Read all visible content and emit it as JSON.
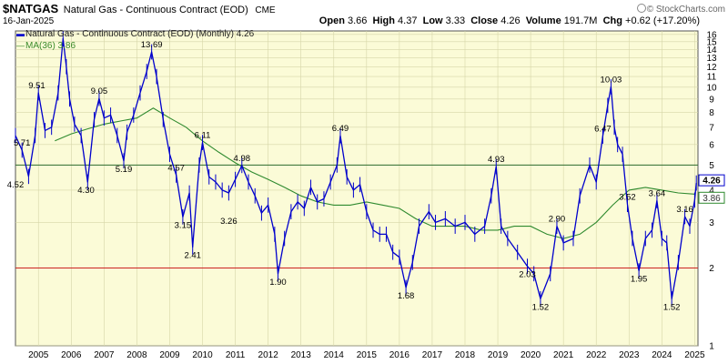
{
  "header": {
    "symbol": "$NATGAS",
    "name": "Natural Gas - Continuous Contract (EOD)",
    "exchange": "CME",
    "date": "16-Jan-2025",
    "open_label": "Open",
    "open": "3.66",
    "high_label": "High",
    "high": "4.37",
    "low_label": "Low",
    "low": "3.33",
    "close_label": "Close",
    "close": "4.26",
    "volume_label": "Volume",
    "volume": "191.7M",
    "chg_label": "Chg",
    "chg": "+0.62 (+17.20%)",
    "copyright": "© StockCharts.com"
  },
  "legend": {
    "price": "Natural Gas - Continuous Contract (EOD) (Monthly) 4.26",
    "ma": "MA(36) 3.86"
  },
  "colors": {
    "plot_bg": "#fbfbd7",
    "price": "#0000cc",
    "ma": "#2f8a2f",
    "upper_line": "#2e6b2e",
    "lower_line": "#cc2222",
    "grid": "#d6d6a8"
  },
  "chart_data": {
    "type": "line",
    "title": "$NATGAS Natural Gas - Continuous Contract (EOD)",
    "interval": "Monthly",
    "xlabel": "",
    "ylabel": "",
    "x_ticks": [
      "2005",
      "2006",
      "2007",
      "2008",
      "2009",
      "2010",
      "2011",
      "2012",
      "2013",
      "2014",
      "2015",
      "2016",
      "2017",
      "2018",
      "2019",
      "2020",
      "2021",
      "2022",
      "2023",
      "2024",
      "2025"
    ],
    "xlim": [
      2004.3,
      2025.1
    ],
    "ylim": [
      1,
      16.5
    ],
    "y_scale": "log",
    "y_ticks": [
      1,
      2,
      3,
      4,
      5,
      6,
      7,
      8,
      9,
      10,
      11,
      12,
      13,
      14,
      15,
      16
    ],
    "grid": true,
    "legend_position": "top-left",
    "horizontal_lines": [
      {
        "value": 5.0,
        "color": "#2e6b2e"
      },
      {
        "value": 2.0,
        "color": "#cc2222"
      }
    ],
    "series": [
      {
        "name": "Natural Gas - Continuous Contract (EOD) (Monthly)",
        "x": [
          2004.3,
          2004.5,
          2004.7,
          2004.9,
          2005.0,
          2005.2,
          2005.4,
          2005.6,
          2005.75,
          2005.85,
          2005.95,
          2006.1,
          2006.3,
          2006.5,
          2006.7,
          2006.85,
          2007.0,
          2007.2,
          2007.4,
          2007.6,
          2007.7,
          2007.9,
          2008.1,
          2008.3,
          2008.45,
          2008.6,
          2008.8,
          2009.0,
          2009.2,
          2009.4,
          2009.6,
          2009.7,
          2009.9,
          2010.0,
          2010.2,
          2010.4,
          2010.6,
          2010.8,
          2011.0,
          2011.2,
          2011.4,
          2011.6,
          2011.8,
          2012.0,
          2012.2,
          2012.3,
          2012.5,
          2012.7,
          2012.9,
          2013.1,
          2013.3,
          2013.5,
          2013.7,
          2013.9,
          2014.1,
          2014.2,
          2014.4,
          2014.6,
          2014.8,
          2015.0,
          2015.2,
          2015.4,
          2015.6,
          2015.8,
          2016.0,
          2016.2,
          2016.4,
          2016.6,
          2016.9,
          2017.1,
          2017.4,
          2017.7,
          2018.0,
          2018.3,
          2018.6,
          2018.8,
          2018.95,
          2019.1,
          2019.3,
          2019.6,
          2019.9,
          2020.1,
          2020.3,
          2020.6,
          2020.8,
          2021.0,
          2021.3,
          2021.5,
          2021.8,
          2022.0,
          2022.2,
          2022.35,
          2022.45,
          2022.55,
          2022.65,
          2022.8,
          2022.95,
          2023.1,
          2023.3,
          2023.5,
          2023.7,
          2023.85,
          2024.0,
          2024.15,
          2024.3,
          2024.5,
          2024.7,
          2024.85,
          2025.0,
          2025.05
        ],
        "values": [
          6.5,
          5.71,
          4.52,
          6.5,
          9.51,
          6.8,
          7.0,
          9.5,
          15.4,
          12.0,
          9.0,
          7.2,
          6.5,
          4.3,
          7.5,
          9.05,
          7.6,
          7.8,
          6.5,
          5.19,
          6.7,
          7.8,
          9.5,
          11.5,
          13.69,
          11.0,
          7.5,
          5.5,
          4.57,
          3.15,
          3.9,
          2.41,
          5.0,
          6.11,
          4.5,
          4.3,
          4.0,
          3.9,
          4.4,
          4.98,
          4.3,
          3.8,
          3.26,
          3.5,
          2.7,
          1.9,
          2.6,
          3.3,
          3.6,
          3.4,
          4.1,
          3.6,
          3.7,
          4.3,
          5.0,
          6.49,
          4.5,
          4.0,
          4.2,
          3.3,
          2.8,
          2.7,
          2.7,
          2.3,
          2.2,
          1.68,
          2.1,
          2.9,
          3.3,
          3.0,
          3.1,
          2.9,
          3.0,
          2.7,
          2.9,
          3.8,
          4.93,
          2.9,
          2.6,
          2.3,
          2.03,
          1.9,
          1.52,
          1.9,
          2.9,
          2.5,
          2.6,
          3.8,
          5.0,
          4.3,
          6.47,
          8.5,
          10.03,
          7.0,
          6.0,
          5.5,
          3.52,
          2.6,
          1.95,
          2.6,
          2.8,
          3.64,
          2.6,
          2.5,
          1.52,
          2.1,
          3.16,
          2.9,
          3.66,
          4.26
        ]
      },
      {
        "name": "MA(36)",
        "x": [
          2005.5,
          2006.0,
          2006.5,
          2007.0,
          2007.5,
          2008.0,
          2008.5,
          2009.0,
          2009.5,
          2010.0,
          2010.5,
          2011.0,
          2011.5,
          2012.0,
          2012.5,
          2013.0,
          2013.5,
          2014.0,
          2014.5,
          2015.0,
          2015.5,
          2016.0,
          2016.5,
          2017.0,
          2017.5,
          2018.0,
          2018.5,
          2019.0,
          2019.5,
          2020.0,
          2020.5,
          2021.0,
          2021.5,
          2022.0,
          2022.5,
          2023.0,
          2023.5,
          2024.0,
          2024.5,
          2025.0
        ],
        "values": [
          6.2,
          6.6,
          6.9,
          7.2,
          7.4,
          7.6,
          8.3,
          7.6,
          7.0,
          6.2,
          5.6,
          5.1,
          4.7,
          4.4,
          4.1,
          3.8,
          3.6,
          3.5,
          3.5,
          3.6,
          3.5,
          3.4,
          3.1,
          2.9,
          2.9,
          2.9,
          2.8,
          2.8,
          2.9,
          2.9,
          2.7,
          2.6,
          2.7,
          3.0,
          3.5,
          4.0,
          4.1,
          4.0,
          3.9,
          3.86
        ]
      }
    ],
    "annotations": [
      {
        "x": 2004.5,
        "y": 5.71,
        "text": "5.71"
      },
      {
        "x": 2004.3,
        "y": 4.52,
        "text": "4.52"
      },
      {
        "x": 2004.95,
        "y": 9.51,
        "text": "9.51"
      },
      {
        "x": 2006.45,
        "y": 4.3,
        "text": "4.30"
      },
      {
        "x": 2006.85,
        "y": 9.05,
        "text": "9.05"
      },
      {
        "x": 2007.6,
        "y": 5.19,
        "text": "5.19"
      },
      {
        "x": 2008.45,
        "y": 13.69,
        "text": "13.69"
      },
      {
        "x": 2009.2,
        "y": 4.57,
        "text": "4.57"
      },
      {
        "x": 2009.4,
        "y": 3.15,
        "text": "3.15"
      },
      {
        "x": 2009.7,
        "y": 2.41,
        "text": "2.41"
      },
      {
        "x": 2010.0,
        "y": 6.11,
        "text": "6.11"
      },
      {
        "x": 2011.2,
        "y": 4.98,
        "text": "4.98"
      },
      {
        "x": 2010.8,
        "y": 3.26,
        "text": "3.26"
      },
      {
        "x": 2012.3,
        "y": 1.9,
        "text": "1.90"
      },
      {
        "x": 2014.2,
        "y": 6.49,
        "text": "6.49"
      },
      {
        "x": 2016.2,
        "y": 1.68,
        "text": "1.68"
      },
      {
        "x": 2018.95,
        "y": 4.93,
        "text": "4.93"
      },
      {
        "x": 2019.9,
        "y": 2.03,
        "text": "2.03"
      },
      {
        "x": 2020.3,
        "y": 1.52,
        "text": "1.52"
      },
      {
        "x": 2020.8,
        "y": 2.9,
        "text": "2.90"
      },
      {
        "x": 2022.2,
        "y": 6.47,
        "text": "6.47"
      },
      {
        "x": 2022.45,
        "y": 10.03,
        "text": "10.03"
      },
      {
        "x": 2022.95,
        "y": 3.52,
        "text": "3.52"
      },
      {
        "x": 2023.3,
        "y": 1.95,
        "text": "1.95"
      },
      {
        "x": 2023.85,
        "y": 3.64,
        "text": "3.64"
      },
      {
        "x": 2024.3,
        "y": 1.52,
        "text": "1.52"
      },
      {
        "x": 2024.7,
        "y": 3.16,
        "text": "3.16"
      }
    ],
    "last_value_tags": [
      {
        "value": 4.26,
        "text": "4.26",
        "color": "#0000cc"
      },
      {
        "value": 3.86,
        "text": "3.86",
        "color": "#2f8a2f"
      }
    ]
  }
}
